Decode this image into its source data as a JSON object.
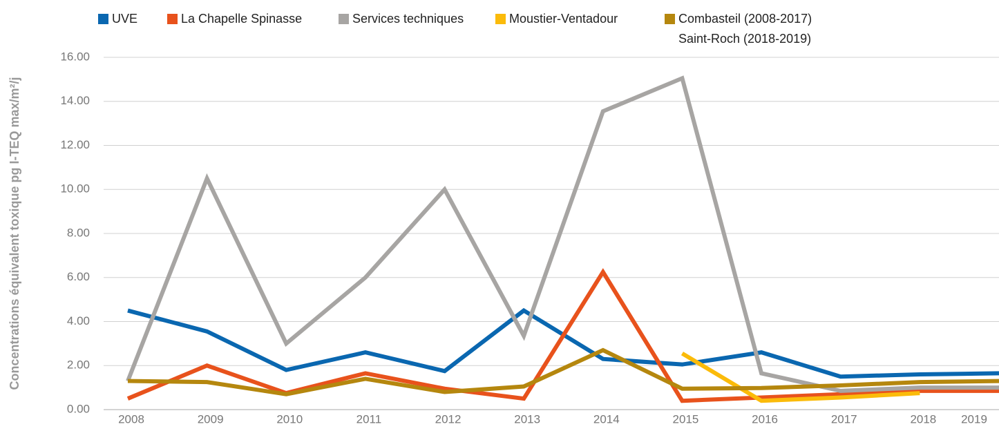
{
  "chart_data": {
    "type": "line",
    "y_label": "Concentrations équivalent toxique pg I-TEQ max/m²/j",
    "categories": [
      "2008",
      "2009",
      "2010",
      "2011",
      "2012",
      "2013",
      "2014",
      "2015",
      "2016",
      "2017",
      "2018",
      "2019"
    ],
    "series": [
      {
        "name": "UVE",
        "color": "#0a67b0",
        "values": [
          4.5,
          3.55,
          1.8,
          2.6,
          1.75,
          4.5,
          2.3,
          2.05,
          2.6,
          1.5,
          1.6,
          1.65
        ]
      },
      {
        "name": "La Chapelle Spinasse",
        "color": "#e8521c",
        "values": [
          0.5,
          2.0,
          0.75,
          1.65,
          0.95,
          0.5,
          6.25,
          0.4,
          0.55,
          0.7,
          0.85,
          0.85
        ]
      },
      {
        "name": "Services techniques",
        "color": "#a7a5a3",
        "values": [
          1.3,
          10.5,
          3.0,
          6.0,
          10.0,
          3.35,
          13.55,
          15.05,
          1.65,
          0.85,
          1.0,
          1.0
        ]
      },
      {
        "name": "Moustier-Ventadour",
        "color": "#fbbb0a",
        "values": [
          null,
          null,
          null,
          null,
          null,
          null,
          null,
          2.55,
          0.4,
          0.55,
          0.75,
          null
        ]
      },
      {
        "name": "Combasteil (2008-2017)\nSaint-Roch (2018-2019)",
        "color": "#b5870e",
        "values": [
          1.3,
          1.25,
          0.7,
          1.4,
          0.8,
          1.05,
          2.7,
          0.95,
          0.98,
          1.1,
          1.25,
          1.3
        ]
      }
    ],
    "ylim": [
      0,
      16
    ],
    "yticks": [
      {
        "value": 0,
        "label": "0.00"
      },
      {
        "value": 2,
        "label": "2.00"
      },
      {
        "value": 4,
        "label": "4.00"
      },
      {
        "value": 6,
        "label": "6.00"
      },
      {
        "value": 8,
        "label": "8.00"
      },
      {
        "value": 10,
        "label": "10.00"
      },
      {
        "value": 12,
        "label": "12.00"
      },
      {
        "value": 14,
        "label": "14.00"
      },
      {
        "value": 16,
        "label": "16.00"
      }
    ],
    "grid": true,
    "legend": "top"
  }
}
